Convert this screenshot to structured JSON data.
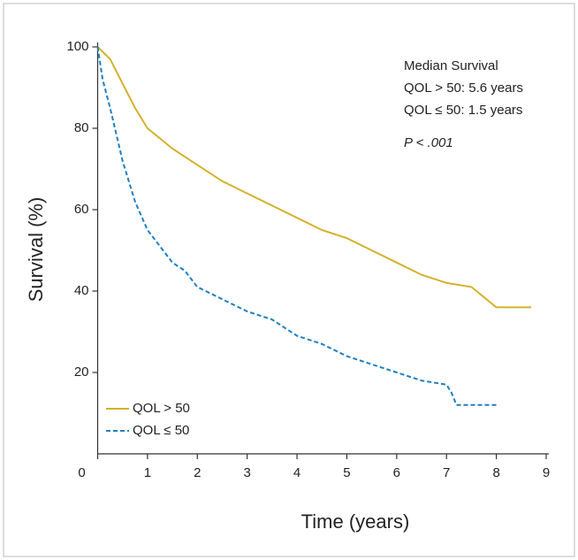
{
  "chart_data": {
    "type": "line",
    "xlabel": "Time (years)",
    "ylabel": "Survival (%)",
    "xlim": [
      0,
      9
    ],
    "ylim": [
      0,
      100
    ],
    "xticks": [
      0,
      1,
      2,
      3,
      4,
      5,
      6,
      7,
      8,
      9
    ],
    "yticks": [
      20,
      40,
      60,
      80,
      100
    ],
    "legend": "lower left",
    "annotations": [
      "Median Survival",
      "QOL > 50: 5.6 years",
      "QOL ≤ 50: 1.5 years",
      "P < .001"
    ],
    "series": [
      {
        "name": "QOL > 50",
        "color": "#d4b12c",
        "dash": false,
        "x": [
          0,
          0.25,
          0.5,
          0.75,
          1,
          1.5,
          2,
          2.5,
          3,
          3.5,
          4,
          4.5,
          5,
          5.5,
          6,
          6.5,
          7,
          7.5,
          7.8,
          8,
          8.7
        ],
        "values": [
          100,
          97,
          91,
          85,
          80,
          75,
          71,
          67,
          64,
          61,
          58,
          55,
          53,
          50,
          47,
          44,
          42,
          41,
          38,
          36,
          36
        ]
      },
      {
        "name": "QOL ≤ 50",
        "color": "#1f7fc1",
        "dash": true,
        "x": [
          0,
          0.1,
          0.25,
          0.5,
          0.75,
          1,
          1.25,
          1.5,
          1.75,
          2,
          2.5,
          3,
          3.5,
          4,
          4.5,
          5,
          5.5,
          6,
          6.5,
          7,
          7.1,
          7.2,
          8
        ],
        "values": [
          100,
          92,
          85,
          72,
          62,
          55,
          51,
          47,
          45,
          41,
          38,
          35,
          33,
          29,
          27,
          24,
          22,
          20,
          18,
          17,
          15,
          12,
          12
        ]
      }
    ]
  }
}
